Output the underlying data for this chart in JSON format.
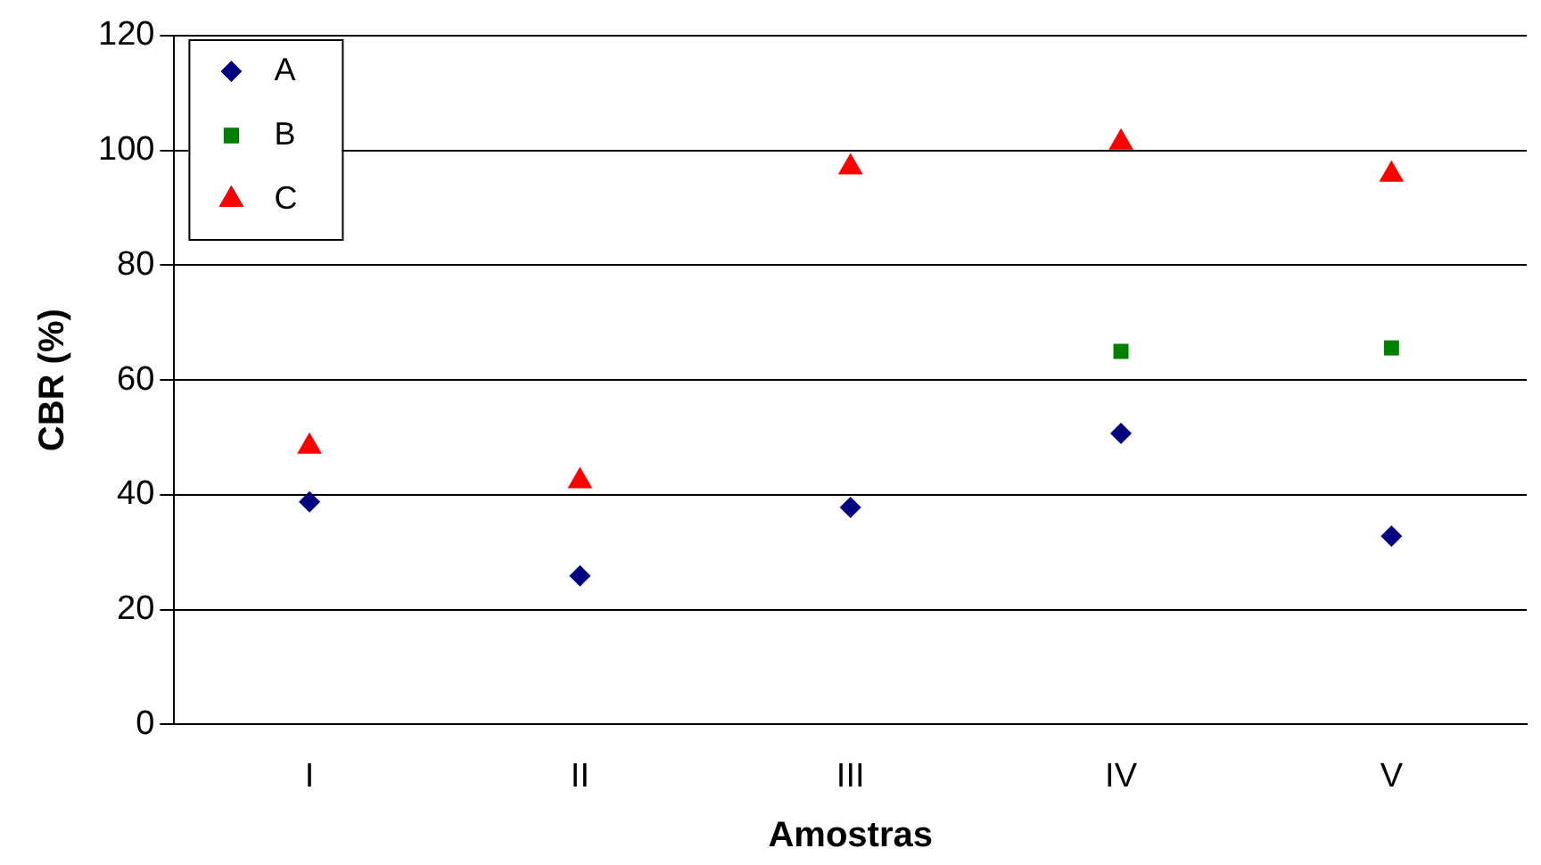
{
  "chart_data": {
    "type": "scatter",
    "xlabel": "Amostras",
    "ylabel": "CBR (%)",
    "categories": [
      "I",
      "II",
      "III",
      "IV",
      "V"
    ],
    "series": [
      {
        "name": "A",
        "color": "#000080",
        "marker": "diamond",
        "values": [
          38.8,
          25.9,
          37.8,
          50.7,
          32.8
        ]
      },
      {
        "name": "B",
        "color": "#008000",
        "marker": "square",
        "values": [
          null,
          null,
          null,
          65,
          65.6
        ]
      },
      {
        "name": "C",
        "color": "#ff0000",
        "marker": "triangle",
        "values": [
          48.4,
          42.4,
          97.1,
          101.4,
          95.8
        ]
      }
    ],
    "ylim": [
      0,
      120
    ],
    "yticks": [
      0,
      20,
      40,
      60,
      80,
      100,
      120
    ],
    "grid": "y",
    "legend": "top left"
  }
}
